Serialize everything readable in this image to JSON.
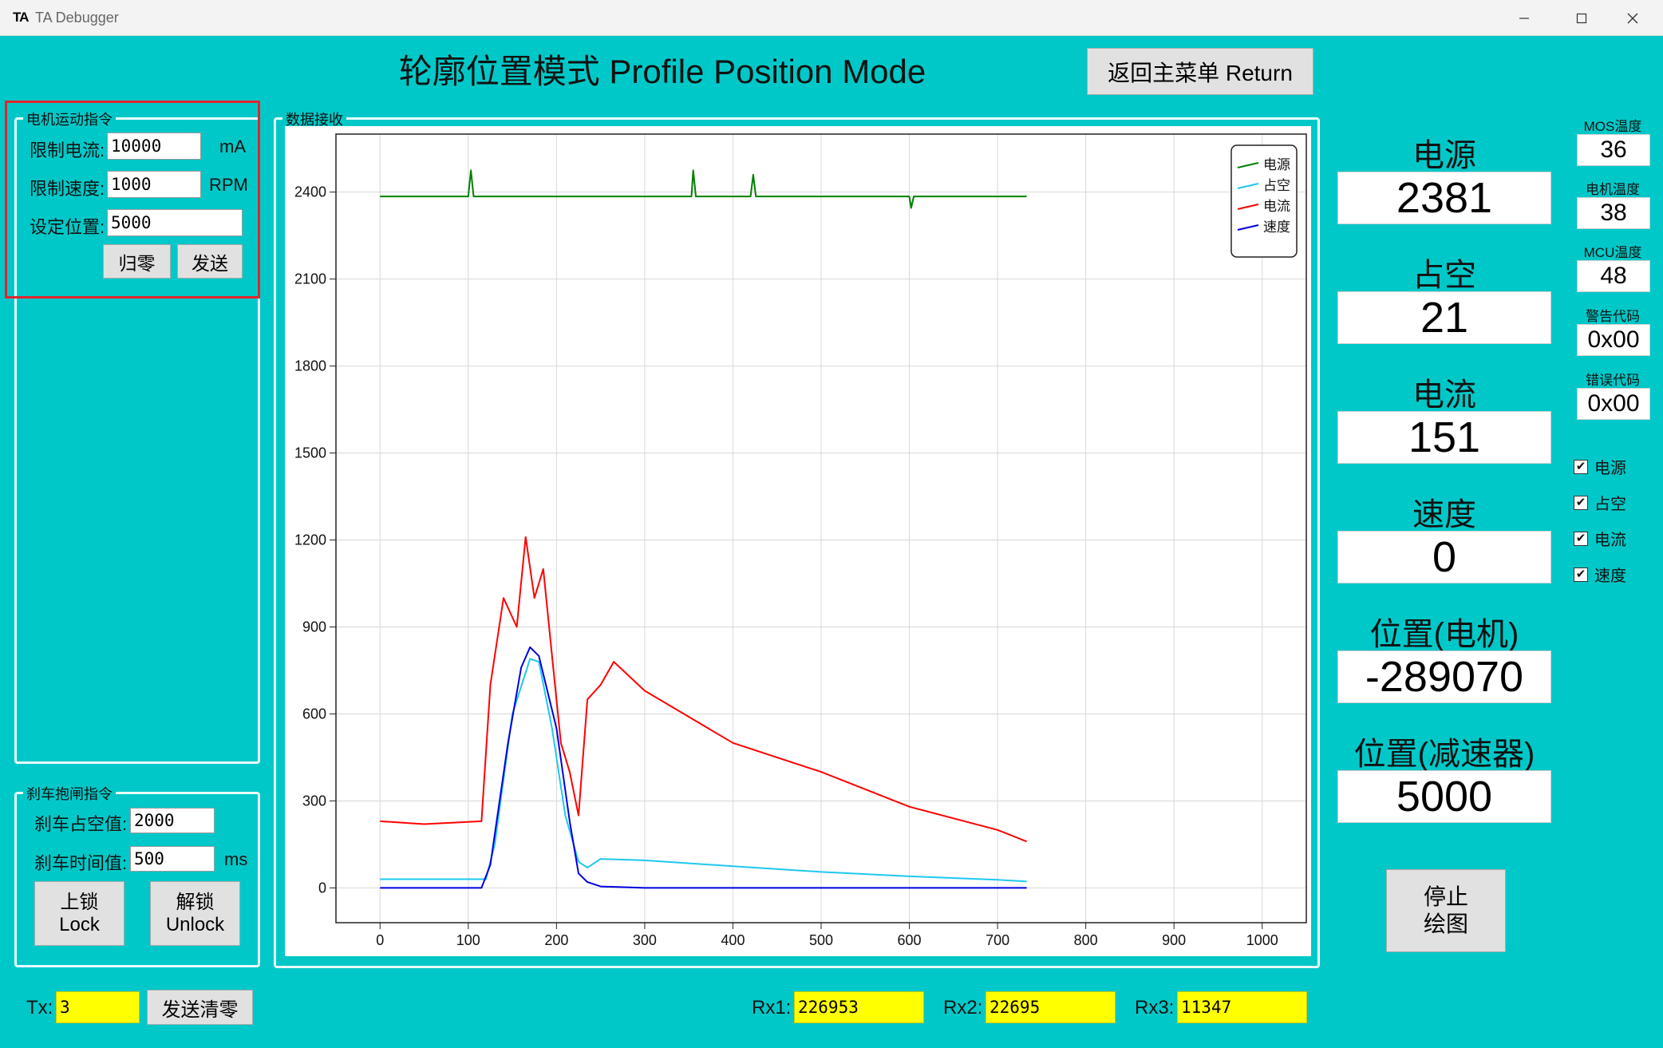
{
  "window": {
    "logo": "TA",
    "title": "TA Debugger"
  },
  "main_title": "轮廓位置模式 Profile Position Mode",
  "return_button": "返回主菜单 Return",
  "motor_group": {
    "legend": "电机运动指令",
    "current_label": "限制电流:",
    "current_value": "10000",
    "current_unit": "mA",
    "speed_label": "限制速度:",
    "speed_value": "1000",
    "speed_unit": "RPM",
    "position_label": "设定位置:",
    "position_value": "5000",
    "zero_button": "归零",
    "send_button": "发送"
  },
  "brake_group": {
    "legend": "刹车抱闸指令",
    "duty_label": "刹车占空值:",
    "duty_value": "2000",
    "time_label": "刹车时间值:",
    "time_value": "500",
    "time_unit": "ms",
    "lock_cn": "上锁",
    "lock_en": "Lock",
    "unlock_cn": "解锁",
    "unlock_en": "Unlock"
  },
  "chart_group": {
    "legend": "数据接收"
  },
  "readouts": {
    "power_title": "电源",
    "power_value": "2381",
    "duty_title": "占空",
    "duty_value": "21",
    "current_title": "电流",
    "current_value": "151",
    "speed_title": "速度",
    "speed_value": "0",
    "motor_pos_title": "位置(电机)",
    "motor_pos_value": "-289070",
    "reducer_pos_title": "位置(减速器)",
    "reducer_pos_value": "5000"
  },
  "small_readouts": {
    "mos_title": "MOS温度",
    "mos_value": "36",
    "motor_temp_title": "电机温度",
    "motor_temp_value": "38",
    "mcu_title": "MCU温度",
    "mcu_value": "48",
    "warn_title": "警告代码",
    "warn_value": "0x00",
    "error_title": "错误代码",
    "error_value": "0x00"
  },
  "checkboxes": [
    {
      "label": "电源",
      "checked": true
    },
    {
      "label": "占空",
      "checked": true
    },
    {
      "label": "电流",
      "checked": true
    },
    {
      "label": "速度",
      "checked": true
    }
  ],
  "stop_button": {
    "line1": "停止",
    "line2": "绘图"
  },
  "status": {
    "tx_label": "Tx:",
    "tx_value": "3",
    "clear_button": "发送清零",
    "rx1_label": "Rx1:",
    "rx1_value": "226953",
    "rx2_label": "Rx2:",
    "rx2_value": "22695",
    "rx3_label": "Rx3:",
    "rx3_value": "11347"
  },
  "colors": {
    "background": "#00C8C8",
    "power": "#008000",
    "duty": "#1EC8F0",
    "current": "#FF0000",
    "speed": "#0000E0",
    "highlight": "#FFFF00"
  },
  "icons": [
    "minimize-icon",
    "maximize-icon",
    "close-icon",
    "checkmark-icon"
  ],
  "chart_data": {
    "type": "line",
    "xlim": [
      -50,
      1050
    ],
    "ylim": [
      -120,
      2600
    ],
    "xticks": [
      0,
      100,
      200,
      300,
      400,
      500,
      600,
      700,
      800,
      900,
      1000
    ],
    "yticks": [
      0,
      300,
      600,
      900,
      1200,
      1500,
      1800,
      2100,
      2400
    ],
    "legend_position": "top-right",
    "grid": true,
    "series": [
      {
        "name": "电源",
        "color": "#008000",
        "x": [
          0,
          100,
          103,
          106,
          200,
          353,
          355,
          358,
          420,
          423,
          426,
          500,
          600,
          602,
          605,
          700,
          733
        ],
        "y": [
          2385,
          2385,
          2475,
          2385,
          2385,
          2385,
          2475,
          2385,
          2385,
          2460,
          2385,
          2385,
          2385,
          2345,
          2385,
          2385,
          2385
        ]
      },
      {
        "name": "占空",
        "color": "#1EC8F0",
        "x": [
          0,
          120,
          130,
          150,
          170,
          180,
          195,
          210,
          225,
          235,
          250,
          300,
          400,
          500,
          600,
          700,
          733
        ],
        "y": [
          30,
          30,
          150,
          600,
          790,
          780,
          550,
          250,
          90,
          70,
          100,
          95,
          75,
          55,
          40,
          28,
          22
        ]
      },
      {
        "name": "电流",
        "color": "#FF0000",
        "x": [
          0,
          50,
          115,
          125,
          140,
          155,
          165,
          175,
          185,
          195,
          205,
          215,
          225,
          235,
          250,
          265,
          300,
          400,
          500,
          600,
          700,
          733
        ],
        "y": [
          230,
          220,
          230,
          700,
          1000,
          900,
          1210,
          1000,
          1100,
          800,
          500,
          400,
          250,
          650,
          700,
          780,
          680,
          500,
          400,
          280,
          200,
          160
        ]
      },
      {
        "name": "速度",
        "color": "#0000E0",
        "x": [
          0,
          115,
          125,
          145,
          160,
          170,
          180,
          200,
          215,
          225,
          235,
          250,
          300,
          400,
          500,
          600,
          700,
          733
        ],
        "y": [
          0,
          0,
          80,
          500,
          760,
          830,
          800,
          550,
          230,
          50,
          20,
          5,
          0,
          0,
          0,
          0,
          0,
          0
        ]
      }
    ]
  }
}
